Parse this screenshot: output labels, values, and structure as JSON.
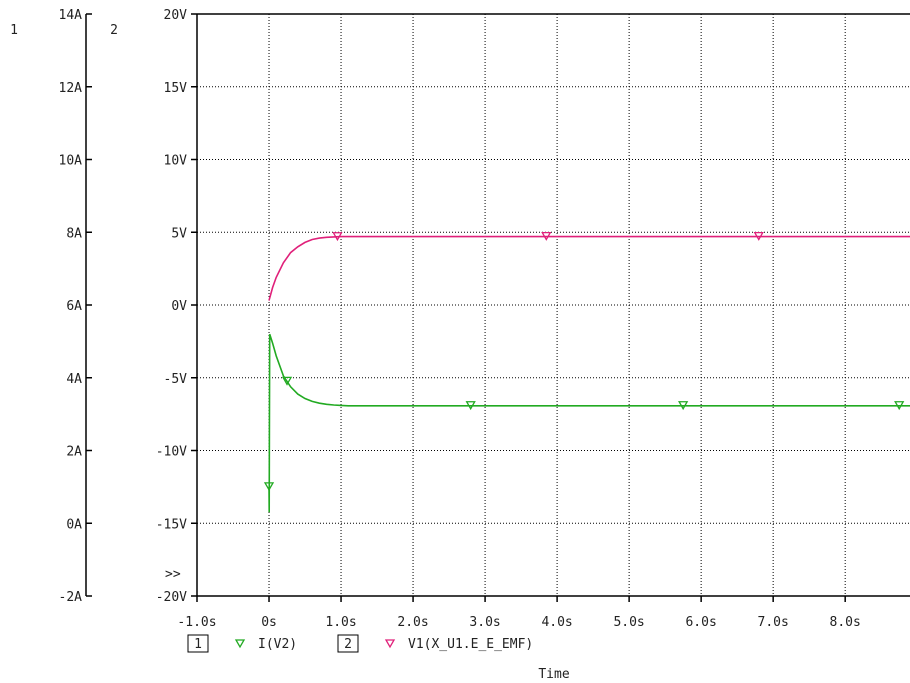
{
  "chart_data": {
    "type": "line",
    "xlabel": "Time",
    "x_ticks": [
      "-1.0s",
      "0s",
      "1.0s",
      "2.0s",
      "3.0s",
      "4.0s",
      "5.0s",
      "6.0s",
      "7.0s",
      "8.0s"
    ],
    "xlim": [
      -1.0,
      8.9
    ],
    "axes": [
      {
        "id": "1",
        "label": "1",
        "ylim": [
          -2,
          14
        ],
        "ticks": [
          "14A",
          "12A",
          "10A",
          "8A",
          "6A",
          "4A",
          "2A",
          "0A",
          "-2A"
        ]
      },
      {
        "id": "2",
        "label": "2",
        "ylim": [
          -20,
          20
        ],
        "ticks": [
          "20V",
          "15V",
          "10V",
          "5V",
          "0V",
          "-5V",
          "-10V",
          "-15V",
          "-20V"
        ]
      }
    ],
    "grid": true,
    "series": [
      {
        "name": "I(V2)",
        "axis": "1",
        "color": "#22aa22",
        "x": [
          0,
          0.002,
          0.005,
          0.01,
          0.05,
          0.1,
          0.2,
          0.3,
          0.4,
          0.5,
          0.6,
          0.7,
          0.8,
          0.9,
          1.0,
          1.1,
          2.0,
          3.0,
          4.0,
          5.0,
          6.0,
          7.0,
          8.0,
          8.9
        ],
        "y": [
          1.0,
          0.3,
          2.5,
          5.2,
          4.95,
          4.6,
          4.05,
          3.75,
          3.55,
          3.43,
          3.35,
          3.3,
          3.27,
          3.25,
          3.24,
          3.23,
          3.23,
          3.23,
          3.23,
          3.23,
          3.23,
          3.23,
          3.23,
          3.23
        ],
        "markers_x": [
          0.0,
          0.25,
          2.8,
          5.75,
          8.75
        ]
      },
      {
        "name": "V1(X_U1.E_E_EMF)",
        "axis": "2",
        "color": "#e0207a",
        "x": [
          0,
          0.05,
          0.1,
          0.2,
          0.3,
          0.4,
          0.5,
          0.6,
          0.7,
          0.8,
          0.9,
          1.0,
          1.1,
          2.0,
          3.0,
          4.0,
          5.0,
          6.0,
          7.0,
          8.0,
          8.9
        ],
        "y": [
          0.3,
          1.2,
          1.9,
          2.9,
          3.6,
          4.0,
          4.3,
          4.5,
          4.6,
          4.65,
          4.68,
          4.7,
          4.7,
          4.7,
          4.7,
          4.7,
          4.7,
          4.7,
          4.7,
          4.7,
          4.7
        ],
        "markers_x": [
          0.95,
          3.85,
          6.8
        ]
      }
    ],
    "legend": [
      {
        "box": "1",
        "symbol": "▿",
        "name": "I(V2)",
        "color": "#22aa22"
      },
      {
        "box": "2",
        "symbol": "▿",
        "name": "V1(X_U1.E_E_EMF)",
        "color": "#e0207a"
      }
    ],
    "marker_text": ">>"
  }
}
